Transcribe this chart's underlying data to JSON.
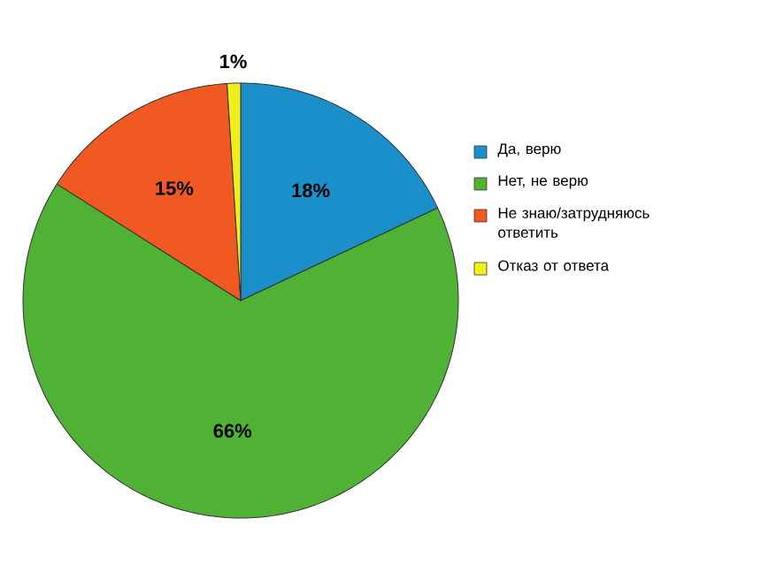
{
  "chart_data": {
    "type": "pie",
    "categories": [
      "Да, верю",
      "Нет, не верю",
      "Не знаю/затрудняюсь ответить",
      "Отказ от ответа"
    ],
    "values": [
      18,
      66,
      15,
      1
    ],
    "value_labels": [
      "18%",
      "66%",
      "15%",
      "1%"
    ],
    "colors": [
      "#1a8fc9",
      "#4fb234",
      "#f05a22",
      "#f2ee1d"
    ],
    "legend": "right"
  }
}
